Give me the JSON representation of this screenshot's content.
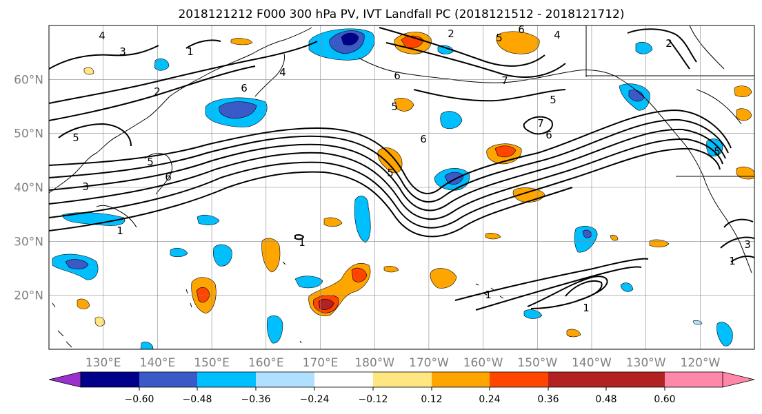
{
  "chart_data": {
    "type": "contour-map",
    "title": "2018121212 F000 300 hPa PV, IVT Landfall PC (2018121512 - 2018121712)",
    "x_ticks": [
      "130°E",
      "140°E",
      "150°E",
      "160°E",
      "170°E",
      "180°W",
      "170°W",
      "160°W",
      "150°W",
      "140°W",
      "130°W",
      "120°W"
    ],
    "y_ticks": [
      "20°N",
      "30°N",
      "40°N",
      "50°N",
      "60°N"
    ],
    "lon_range": [
      121,
      251
    ],
    "lat_range": [
      10,
      70
    ],
    "grid": true,
    "colorbar": {
      "colors": [
        "#9932cc",
        "#00008b",
        "#3a5ac8",
        "#00bfff",
        "#b0e0ff",
        "#ffffff",
        "#ffe680",
        "#ffa500",
        "#ff4500",
        "#b22222",
        "#ff88aa"
      ],
      "tick_labels": [
        "−0.60",
        "−0.48",
        "−0.36",
        "−0.24",
        "−0.12",
        "0.12",
        "0.24",
        "0.36",
        "0.48",
        "0.60"
      ],
      "extend": "both"
    },
    "contour_labels": [
      "1",
      "2",
      "3",
      "4",
      "5",
      "6",
      "7"
    ]
  },
  "contour_label_list": [
    "4",
    "6",
    "5",
    "4",
    "5",
    "2",
    "3",
    "1",
    "2",
    "6",
    "6",
    "5",
    "7",
    "5",
    "7",
    "6",
    "5",
    "6",
    "5",
    "6",
    "1",
    "1",
    "1",
    "1",
    "3",
    "3",
    "1",
    "2",
    "5",
    "4"
  ]
}
